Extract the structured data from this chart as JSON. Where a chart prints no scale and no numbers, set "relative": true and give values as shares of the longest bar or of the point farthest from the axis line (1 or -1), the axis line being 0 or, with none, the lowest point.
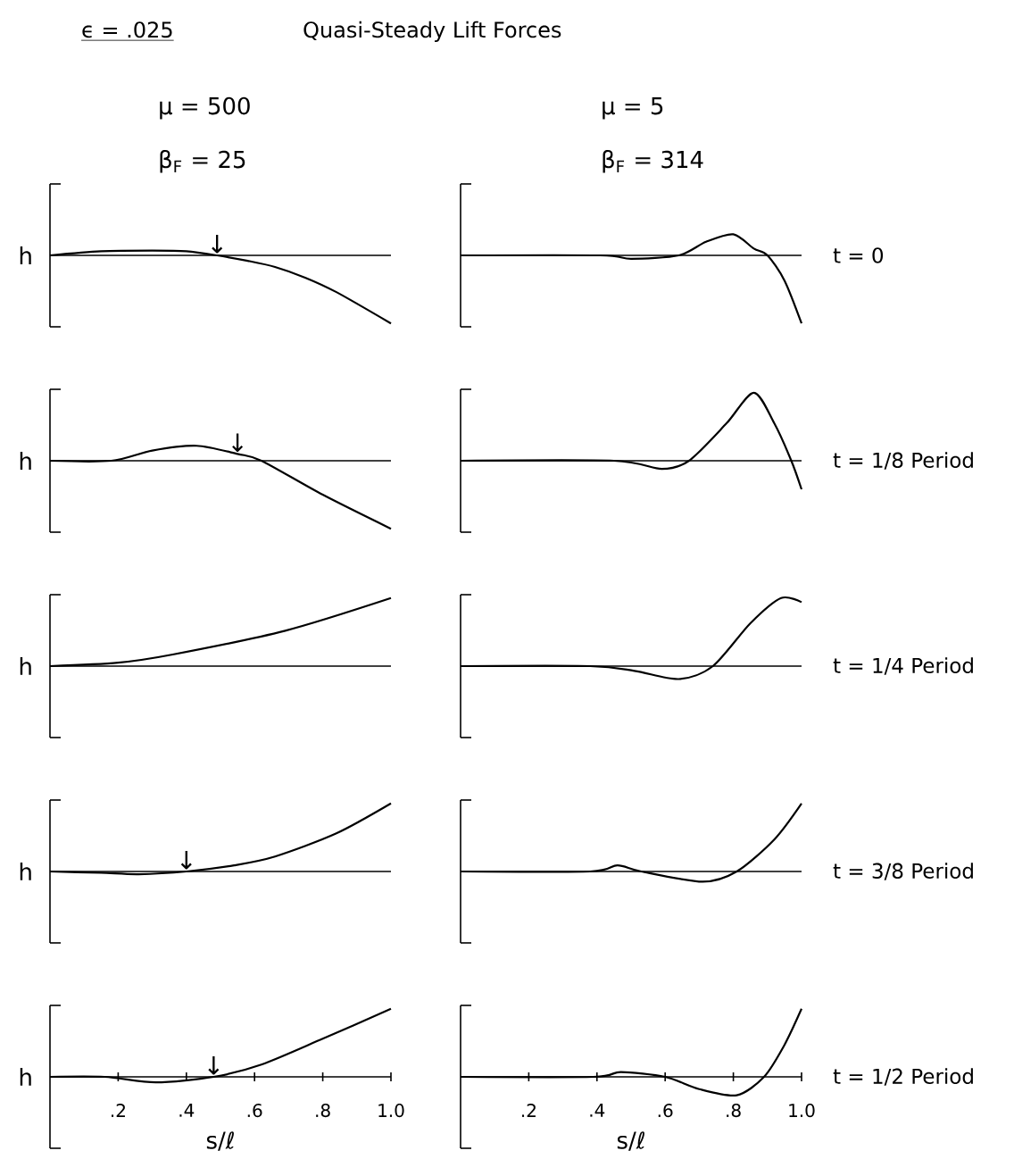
{
  "chart_data": [
    {
      "type": "line",
      "relative": true,
      "title": "μ = 500",
      "subtitle": "β$_{F}$ = 25",
      "ylabel": "h",
      "annotations": [
        "ϵ = .025",
        "Quasi-Steady Lift Forces",
        {
          "text": "↓",
          "x": 0.49,
          "y": 0
        }
      ],
      "xlim": [
        0,
        1
      ],
      "tick_labels": false,
      "color": "#000000",
      "x": [
        0,
        0.15,
        0.3,
        0.4,
        0.49,
        0.58,
        0.66,
        0.75,
        0.84,
        1.0
      ],
      "values": [
        0,
        0.06,
        0.07,
        0.06,
        0,
        -0.08,
        -0.17,
        -0.33,
        -0.54,
        -1
      ]
    },
    {
      "type": "line",
      "relative": true,
      "title": "μ = 5",
      "subtitle": "β$_{F}$ = 314",
      "annotations": [
        "t = 0"
      ],
      "xlim": [
        0,
        1
      ],
      "tick_labels": false,
      "color": "#000000",
      "x": [
        0,
        0.41,
        0.5,
        0.64,
        0.72,
        0.8,
        0.86,
        0.9,
        0.95,
        1.0
      ],
      "values": [
        0,
        0,
        -0.05,
        0,
        0.2,
        0.31,
        0.1,
        0,
        -0.37,
        -1
      ]
    },
    {
      "type": "line",
      "relative": true,
      "ylabel": "h",
      "annotations": [
        {
          "text": "↓",
          "x": 0.55,
          "y": 0.1
        }
      ],
      "xlim": [
        0,
        1
      ],
      "tick_labels": false,
      "color": "#000000",
      "x": [
        0,
        0.18,
        0.3,
        0.43,
        0.55,
        0.62,
        0.8,
        1.0
      ],
      "values": [
        0,
        0,
        0.15,
        0.22,
        0.1,
        0,
        -0.5,
        -1
      ]
    },
    {
      "type": "line",
      "relative": true,
      "annotations": [
        "t = 1/8 Period"
      ],
      "xlim": [
        0,
        1
      ],
      "tick_labels": false,
      "color": "#000000",
      "x": [
        0,
        0.45,
        0.59,
        0.67,
        0.78,
        0.86,
        0.92,
        0.97,
        1.0
      ],
      "values": [
        0,
        0,
        -0.12,
        0,
        0.55,
        1,
        0.55,
        0,
        -0.42
      ]
    },
    {
      "type": "line",
      "relative": true,
      "ylabel": "h",
      "xlim": [
        0,
        1
      ],
      "tick_labels": false,
      "color": "#000000",
      "x": [
        0,
        0.2,
        0.36,
        0.69,
        1.0
      ],
      "values": [
        0,
        0.05,
        0.17,
        0.52,
        1
      ]
    },
    {
      "type": "line",
      "relative": true,
      "annotations": [
        "t = 1/4 Period"
      ],
      "xlim": [
        0,
        1
      ],
      "tick_labels": false,
      "color": "#000000",
      "x": [
        0,
        0.38,
        0.51,
        0.64,
        0.74,
        0.85,
        0.94,
        1.0
      ],
      "values": [
        0,
        0,
        -0.07,
        -0.19,
        0,
        0.63,
        1,
        0.94
      ]
    },
    {
      "type": "line",
      "relative": true,
      "ylabel": "h",
      "annotations": [
        {
          "text": "↓",
          "x": 0.4,
          "y": 0
        }
      ],
      "xlim": [
        0,
        1
      ],
      "tick_labels": false,
      "color": "#000000",
      "x": [
        0,
        0.15,
        0.26,
        0.4,
        0.54,
        0.66,
        0.84,
        1.0
      ],
      "values": [
        0,
        -0.02,
        -0.04,
        0,
        0.09,
        0.22,
        0.56,
        1
      ]
    },
    {
      "type": "line",
      "relative": true,
      "annotations": [
        "t = 3/8 Period"
      ],
      "xlim": [
        0,
        1
      ],
      "tick_labels": false,
      "color": "#000000",
      "x": [
        0,
        0.38,
        0.46,
        0.53,
        0.71,
        0.81,
        0.92,
        1.0
      ],
      "values": [
        0,
        0,
        0.09,
        0,
        -0.15,
        0,
        0.47,
        1
      ]
    },
    {
      "type": "line",
      "relative": true,
      "ylabel": "h",
      "xlabel": "s/ℓ",
      "annotations": [
        {
          "text": "↓",
          "x": 0.48,
          "y": 0
        }
      ],
      "xlim": [
        0,
        1
      ],
      "tick_labels": "x",
      "xticks": [
        {
          "value": 0.2,
          "label": ".2"
        },
        {
          "value": 0.4,
          "label": ".4"
        },
        {
          "value": 0.6,
          "label": ".6"
        },
        {
          "value": 0.8,
          "label": ".8"
        },
        {
          "value": 1.0,
          "label": "1.0"
        }
      ],
      "color": "#000000",
      "x": [
        0,
        0.16,
        0.31,
        0.48,
        0.62,
        0.8,
        1.0
      ],
      "values": [
        0,
        0,
        -0.08,
        0,
        0.18,
        0.56,
        1
      ]
    },
    {
      "type": "line",
      "relative": true,
      "xlabel": "s/ℓ",
      "annotations": [
        "t = 1/2 Period"
      ],
      "xlim": [
        0,
        1
      ],
      "tick_labels": "x",
      "xticks": [
        {
          "value": 0.2,
          "label": ".2"
        },
        {
          "value": 0.4,
          "label": ".4"
        },
        {
          "value": 0.6,
          "label": ".6"
        },
        {
          "value": 0.8,
          "label": ".8"
        },
        {
          "value": 1.0,
          "label": "1.0"
        }
      ],
      "color": "#000000",
      "x": [
        0,
        0.39,
        0.47,
        0.6,
        0.7,
        0.81,
        0.89,
        0.95,
        1.0
      ],
      "values": [
        0,
        0,
        0.07,
        0,
        -0.18,
        -0.27,
        0,
        0.47,
        1
      ]
    }
  ]
}
